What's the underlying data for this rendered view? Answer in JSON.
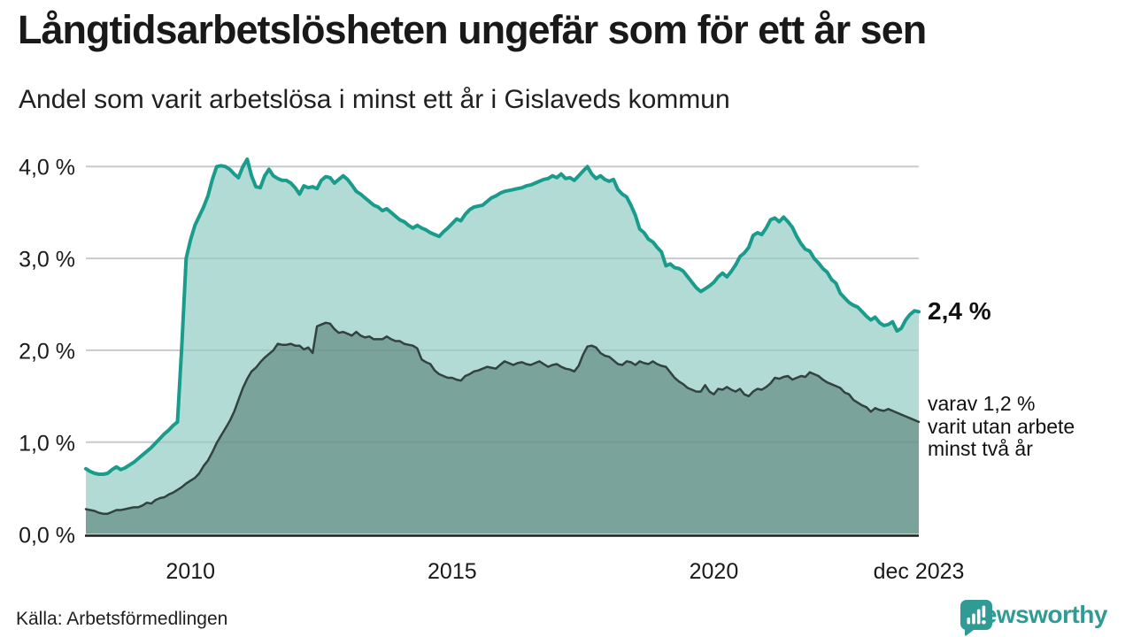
{
  "header": {
    "title": "Långtidsarbetslösheten ungefär som för ett år sen",
    "subtitle": "Andel som varit arbetslösa i minst ett år i Gislaveds kommun"
  },
  "annotations": {
    "latest_total": "2,4 %",
    "secondary_line1": "varav 1,2 %",
    "secondary_line2": "varit utan arbete",
    "secondary_line3": "minst två år"
  },
  "footer": {
    "source": "Källa: Arbetsförmedlingen",
    "brand": "Newsworthy"
  },
  "colors": {
    "line_1yr": "#1a9c8d",
    "fill_1yr": "#b2dbd5",
    "line_2yr": "#32423e",
    "fill_2yr": "#7aa39b",
    "gridline": "#d9dce1",
    "baseline": "#1b1b1b",
    "text": "#1a1a1a",
    "brand_teal": "#2f9b94"
  },
  "chart_data": {
    "type": "area",
    "title": "Andel som varit arbetslösa i minst ett år i Gislaveds kommun",
    "frequency": "monthly",
    "x_start": "2008-01",
    "x_end": "2023-12",
    "ylim": [
      0,
      4.35
    ],
    "grid": "horizontal",
    "y_ticks": [
      {
        "label": "4,0 %",
        "value": 4.0
      },
      {
        "label": "3,0 %",
        "value": 3.0
      },
      {
        "label": "2,0 %",
        "value": 2.0
      },
      {
        "label": "1,0 %",
        "value": 1.0
      },
      {
        "label": "0,0 %",
        "value": 0.0
      }
    ],
    "x_ticks": [
      {
        "label": "2010",
        "index": 24
      },
      {
        "label": "2015",
        "index": 84
      },
      {
        "label": "2020",
        "index": 144
      },
      {
        "label": "dec 2023",
        "index": 191
      }
    ],
    "series": [
      {
        "name": "Arbetslösa minst ett år",
        "final_label": "2,4 %",
        "line_color": "#1a9c8d",
        "fill_color": "#b2dbd5",
        "line_width": 4,
        "values": [
          0.71,
          0.68,
          0.66,
          0.65,
          0.65,
          0.66,
          0.7,
          0.73,
          0.7,
          0.72,
          0.75,
          0.78,
          0.82,
          0.86,
          0.9,
          0.94,
          0.99,
          1.04,
          1.09,
          1.13,
          1.18,
          1.22,
          2.05,
          3.0,
          3.2,
          3.36,
          3.46,
          3.56,
          3.68,
          3.86,
          4.0,
          4.01,
          4.0,
          3.97,
          3.92,
          3.88,
          4.0,
          4.08,
          3.9,
          3.78,
          3.77,
          3.9,
          3.97,
          3.9,
          3.87,
          3.85,
          3.85,
          3.82,
          3.77,
          3.7,
          3.79,
          3.77,
          3.78,
          3.76,
          3.85,
          3.89,
          3.88,
          3.82,
          3.86,
          3.9,
          3.86,
          3.8,
          3.73,
          3.7,
          3.66,
          3.62,
          3.58,
          3.56,
          3.52,
          3.54,
          3.5,
          3.46,
          3.42,
          3.4,
          3.36,
          3.33,
          3.36,
          3.33,
          3.31,
          3.28,
          3.26,
          3.24,
          3.29,
          3.33,
          3.38,
          3.43,
          3.41,
          3.48,
          3.53,
          3.56,
          3.57,
          3.58,
          3.62,
          3.66,
          3.68,
          3.71,
          3.73,
          3.74,
          3.75,
          3.76,
          3.77,
          3.79,
          3.8,
          3.82,
          3.84,
          3.86,
          3.87,
          3.9,
          3.88,
          3.92,
          3.87,
          3.88,
          3.85,
          3.9,
          3.95,
          4.0,
          3.92,
          3.87,
          3.9,
          3.86,
          3.84,
          3.86,
          3.75,
          3.7,
          3.67,
          3.58,
          3.47,
          3.32,
          3.28,
          3.21,
          3.18,
          3.12,
          3.07,
          2.92,
          2.94,
          2.9,
          2.89,
          2.86,
          2.8,
          2.74,
          2.68,
          2.64,
          2.67,
          2.7,
          2.74,
          2.8,
          2.84,
          2.8,
          2.86,
          2.93,
          3.02,
          3.06,
          3.12,
          3.25,
          3.28,
          3.26,
          3.33,
          3.42,
          3.44,
          3.4,
          3.45,
          3.4,
          3.34,
          3.24,
          3.16,
          3.1,
          3.08,
          3.0,
          2.95,
          2.89,
          2.85,
          2.77,
          2.73,
          2.62,
          2.57,
          2.52,
          2.49,
          2.47,
          2.42,
          2.37,
          2.33,
          2.36,
          2.3,
          2.27,
          2.28,
          2.31,
          2.21,
          2.24,
          2.33,
          2.39,
          2.43,
          2.42
        ]
      },
      {
        "name": "Arbetslösa minst två år",
        "final_label": "varav 1,2 %",
        "line_color": "#32423e",
        "fill_color": "#7aa39b",
        "line_width": 2.5,
        "values": [
          0.27,
          0.26,
          0.25,
          0.23,
          0.22,
          0.22,
          0.24,
          0.26,
          0.26,
          0.27,
          0.28,
          0.29,
          0.29,
          0.31,
          0.34,
          0.33,
          0.37,
          0.39,
          0.4,
          0.43,
          0.45,
          0.48,
          0.51,
          0.55,
          0.58,
          0.61,
          0.66,
          0.74,
          0.8,
          0.89,
          0.99,
          1.07,
          1.15,
          1.23,
          1.33,
          1.46,
          1.59,
          1.69,
          1.77,
          1.81,
          1.87,
          1.92,
          1.96,
          2.0,
          2.07,
          2.06,
          2.06,
          2.07,
          2.05,
          2.05,
          2.01,
          2.03,
          1.97,
          2.26,
          2.28,
          2.3,
          2.29,
          2.23,
          2.19,
          2.2,
          2.18,
          2.16,
          2.2,
          2.16,
          2.14,
          2.15,
          2.12,
          2.12,
          2.12,
          2.15,
          2.12,
          2.1,
          2.1,
          2.07,
          2.06,
          2.05,
          2.02,
          1.9,
          1.87,
          1.85,
          1.78,
          1.74,
          1.72,
          1.7,
          1.7,
          1.68,
          1.67,
          1.72,
          1.74,
          1.77,
          1.78,
          1.8,
          1.82,
          1.81,
          1.8,
          1.84,
          1.88,
          1.86,
          1.84,
          1.86,
          1.87,
          1.85,
          1.84,
          1.86,
          1.88,
          1.85,
          1.82,
          1.84,
          1.85,
          1.82,
          1.8,
          1.79,
          1.77,
          1.83,
          1.95,
          2.04,
          2.05,
          2.03,
          1.97,
          1.94,
          1.93,
          1.89,
          1.85,
          1.84,
          1.88,
          1.87,
          1.84,
          1.88,
          1.86,
          1.85,
          1.88,
          1.85,
          1.83,
          1.82,
          1.76,
          1.7,
          1.66,
          1.63,
          1.59,
          1.57,
          1.55,
          1.55,
          1.62,
          1.55,
          1.52,
          1.58,
          1.57,
          1.6,
          1.57,
          1.55,
          1.58,
          1.52,
          1.5,
          1.55,
          1.58,
          1.57,
          1.6,
          1.64,
          1.7,
          1.69,
          1.71,
          1.72,
          1.68,
          1.7,
          1.72,
          1.71,
          1.76,
          1.74,
          1.72,
          1.68,
          1.65,
          1.63,
          1.61,
          1.59,
          1.54,
          1.52,
          1.46,
          1.43,
          1.4,
          1.38,
          1.33,
          1.37,
          1.35,
          1.34,
          1.36,
          1.34,
          1.32,
          1.3,
          1.28,
          1.26,
          1.24,
          1.22
        ]
      }
    ]
  }
}
